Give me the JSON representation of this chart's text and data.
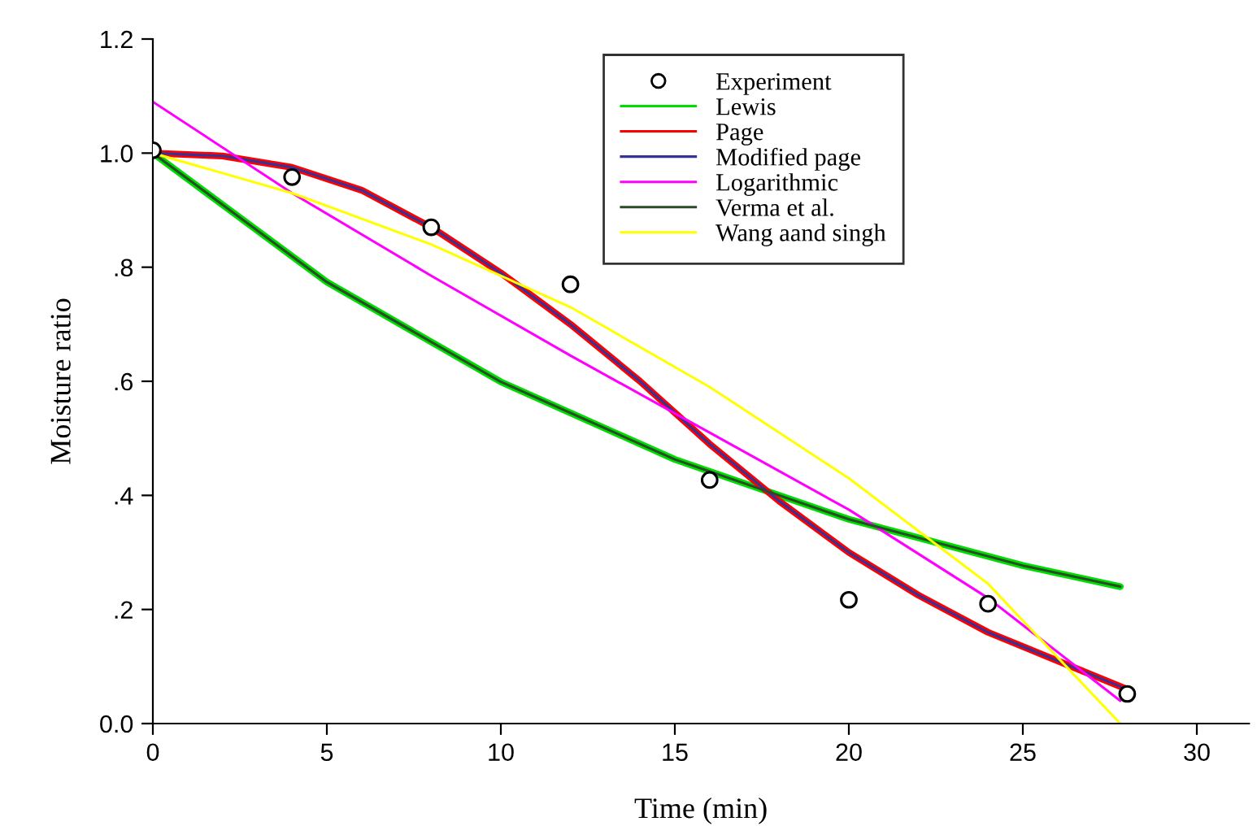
{
  "chart_data": {
    "type": "line",
    "xlabel": "Time (min)",
    "ylabel": "Moisture ratio",
    "xlim": [
      0,
      31.5
    ],
    "xticks": [
      0,
      5,
      10,
      15,
      20,
      25,
      30
    ],
    "ylim": [
      0,
      1.2
    ],
    "yticks": [
      {
        "value": 0,
        "label": "0.0"
      },
      {
        "value": 0.2,
        "label": ".2"
      },
      {
        "value": 0.4,
        "label": ".4"
      },
      {
        "value": 0.6,
        "label": ".6"
      },
      {
        "value": 0.8,
        "label": ".8"
      },
      {
        "value": 1.0,
        "label": "1.0"
      },
      {
        "value": 1.2,
        "label": "1.2"
      }
    ],
    "grid": false,
    "legend": "top",
    "marker": "none",
    "line_style": "solid",
    "series": [
      {
        "name": "Experiment",
        "type": "scatter",
        "marker": "circle",
        "color": "#000000",
        "x": [
          0,
          4,
          8,
          12,
          16,
          20,
          24,
          28
        ],
        "values": [
          1.005,
          0.958,
          0.87,
          0.77,
          0.427,
          0.217,
          0.21,
          0.052
        ]
      },
      {
        "name": "Lewis",
        "color": "#00dd00",
        "x": [
          0,
          5,
          10,
          15,
          20,
          25,
          27.8
        ],
        "values": [
          1.0,
          0.774,
          0.599,
          0.463,
          0.358,
          0.277,
          0.24
        ]
      },
      {
        "name": "Page",
        "color": "#ff0000",
        "x": [
          0,
          2,
          4,
          6,
          8,
          10,
          12,
          14,
          16,
          18,
          20,
          22,
          24,
          26,
          28
        ],
        "values": [
          1.0,
          0.995,
          0.975,
          0.935,
          0.87,
          0.79,
          0.7,
          0.6,
          0.49,
          0.39,
          0.3,
          0.225,
          0.16,
          0.11,
          0.06
        ]
      },
      {
        "name": "Modified page",
        "color": "#333399",
        "x": [
          0,
          2,
          4,
          6,
          8,
          10,
          12,
          14,
          16,
          18,
          20,
          22,
          24,
          26,
          28
        ],
        "values": [
          1.0,
          0.995,
          0.975,
          0.935,
          0.87,
          0.79,
          0.7,
          0.6,
          0.49,
          0.39,
          0.3,
          0.225,
          0.16,
          0.11,
          0.06
        ]
      },
      {
        "name": "Logarithmic",
        "color": "#ff00ff",
        "x": [
          0,
          4,
          8,
          12,
          16,
          20,
          24,
          27.8
        ],
        "values": [
          1.09,
          0.93,
          0.785,
          0.645,
          0.51,
          0.375,
          0.22,
          0.04
        ]
      },
      {
        "name": "Verma et al.",
        "color": "#2a4a2a",
        "x": [
          0,
          5,
          10,
          15,
          20,
          25,
          27.8
        ],
        "values": [
          1.0,
          0.774,
          0.599,
          0.463,
          0.358,
          0.277,
          0.24
        ]
      },
      {
        "name": "Wang aand singh",
        "color": "#ffff00",
        "x": [
          0,
          4,
          8,
          12,
          16,
          20,
          24,
          27.8
        ],
        "values": [
          1.0,
          0.93,
          0.84,
          0.73,
          0.59,
          0.43,
          0.245,
          0.0
        ]
      }
    ]
  }
}
